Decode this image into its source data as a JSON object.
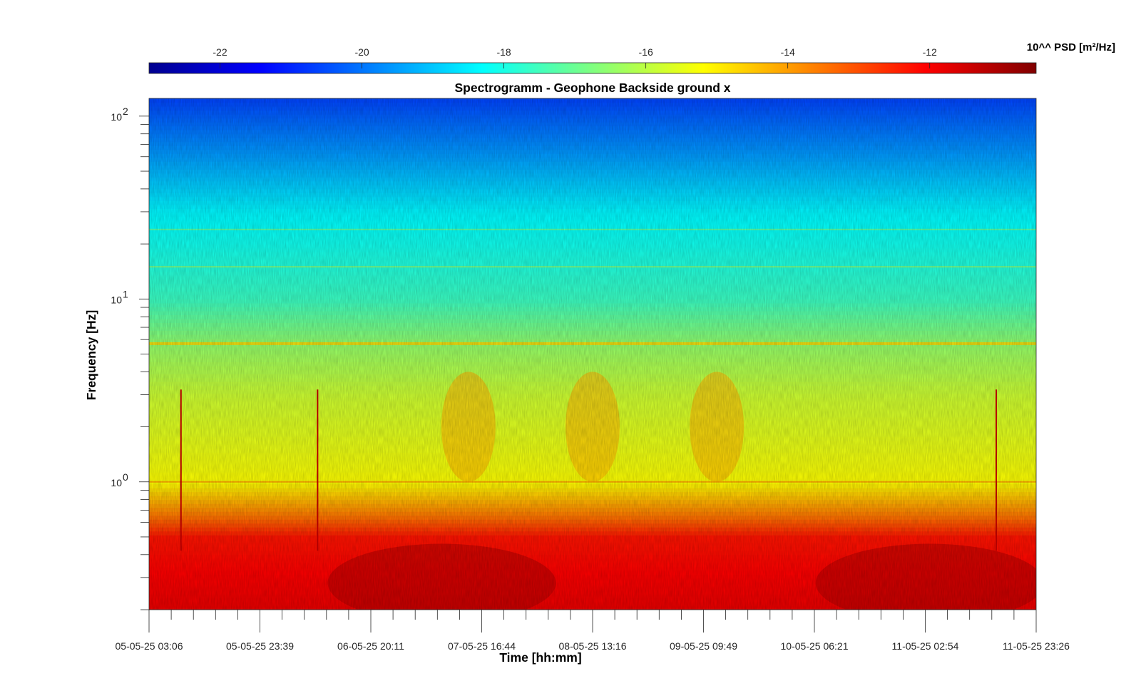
{
  "chart_data": {
    "type": "heatmap",
    "title": "Spectrogramm - Geophone Backside ground x",
    "xlabel": "Time [hh:mm]",
    "ylabel": "Frequency [Hz]",
    "y_scale": "log",
    "ylim": [
      0.2,
      125
    ],
    "x_ticks": [
      "05-05-25 03:06",
      "05-05-25 23:39",
      "06-05-25 20:11",
      "07-05-25 16:44",
      "08-05-25 13:16",
      "09-05-25 09:49",
      "10-05-25 06:21",
      "11-05-25 02:54",
      "11-05-25 23:26"
    ],
    "y_major_ticks": [
      {
        "base": "10",
        "exp": "0",
        "value": 1
      },
      {
        "base": "10",
        "exp": "1",
        "value": 10
      },
      {
        "base": "10",
        "exp": "2",
        "value": 100
      }
    ],
    "colorbar": {
      "label": "10^^ PSD [m²/Hz]",
      "colormap": "jet",
      "range": [
        -23,
        -10.5
      ],
      "ticks": [
        "-22",
        "-20",
        "-18",
        "-16",
        "-14",
        "-12"
      ],
      "tick_values": [
        -22,
        -20,
        -18,
        -16,
        -14,
        -12
      ]
    },
    "spectral_profile": [
      {
        "freq_hz": 0.2,
        "log_psd": -11.8
      },
      {
        "freq_hz": 0.5,
        "log_psd": -12.3
      },
      {
        "freq_hz": 0.65,
        "log_psd": -13.5
      },
      {
        "freq_hz": 1.0,
        "log_psd": -15.2
      },
      {
        "freq_hz": 3.0,
        "log_psd": -15.8
      },
      {
        "freq_hz": 5.7,
        "log_psd": -16.5
      },
      {
        "freq_hz": 10,
        "log_psd": -17.6
      },
      {
        "freq_hz": 30,
        "log_psd": -18.4
      },
      {
        "freq_hz": 60,
        "log_psd": -19.5
      },
      {
        "freq_hz": 125,
        "log_psd": -20.6
      }
    ],
    "tonal_lines_hz": [
      5.7,
      15,
      24,
      1.0
    ],
    "daytime_activity_x_fraction": [
      0.36,
      0.5,
      0.64
    ],
    "transient_events_x_fraction": [
      0.036,
      0.19,
      0.955
    ]
  }
}
